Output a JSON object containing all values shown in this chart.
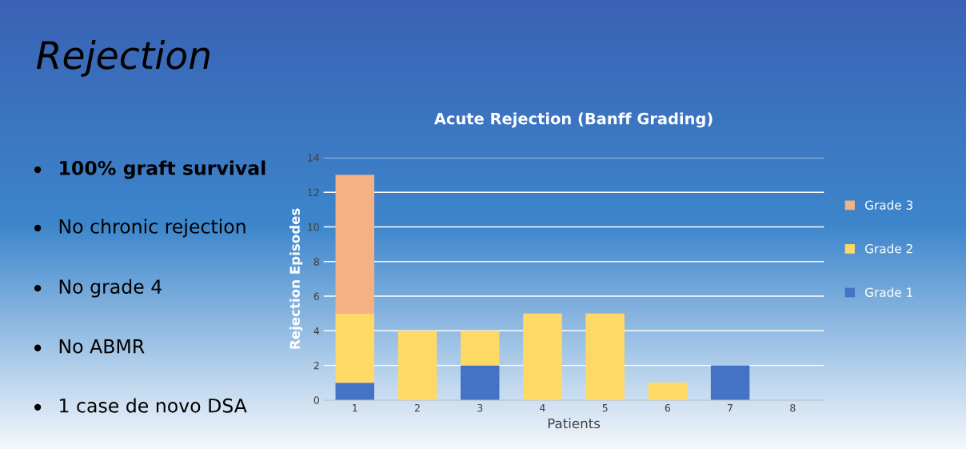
{
  "chart_data": {
    "type": "bar",
    "title": "Acute Rejection (Banff Grading)",
    "xlabel": "Patients",
    "ylabel": "Rejection Episodes",
    "categories": [
      "1",
      "2",
      "3",
      "4",
      "5",
      "6",
      "7",
      "8"
    ],
    "series": [
      {
        "name": "Grade 1",
        "color": "#4472c4",
        "values": [
          1,
          0,
          2,
          0,
          0,
          0,
          2,
          0
        ]
      },
      {
        "name": "Grade 2",
        "color": "#ffd966",
        "values": [
          4,
          4,
          2,
          5,
          5,
          1,
          0,
          0
        ]
      },
      {
        "name": "Grade 3",
        "color": "#f4b183",
        "values": [
          8,
          0,
          0,
          0,
          0,
          0,
          0,
          0
        ]
      }
    ],
    "stacked": true,
    "ylim": [
      0,
      14
    ],
    "yticks": [
      0,
      2,
      4,
      6,
      8,
      10,
      12,
      14
    ],
    "grid": "y",
    "legend": "right",
    "annotations": [
      "Rejection",
      "100% graft survival",
      "No chronic rejection",
      "No grade 4",
      "No ABMR",
      "1 case de novo DSA"
    ]
  }
}
